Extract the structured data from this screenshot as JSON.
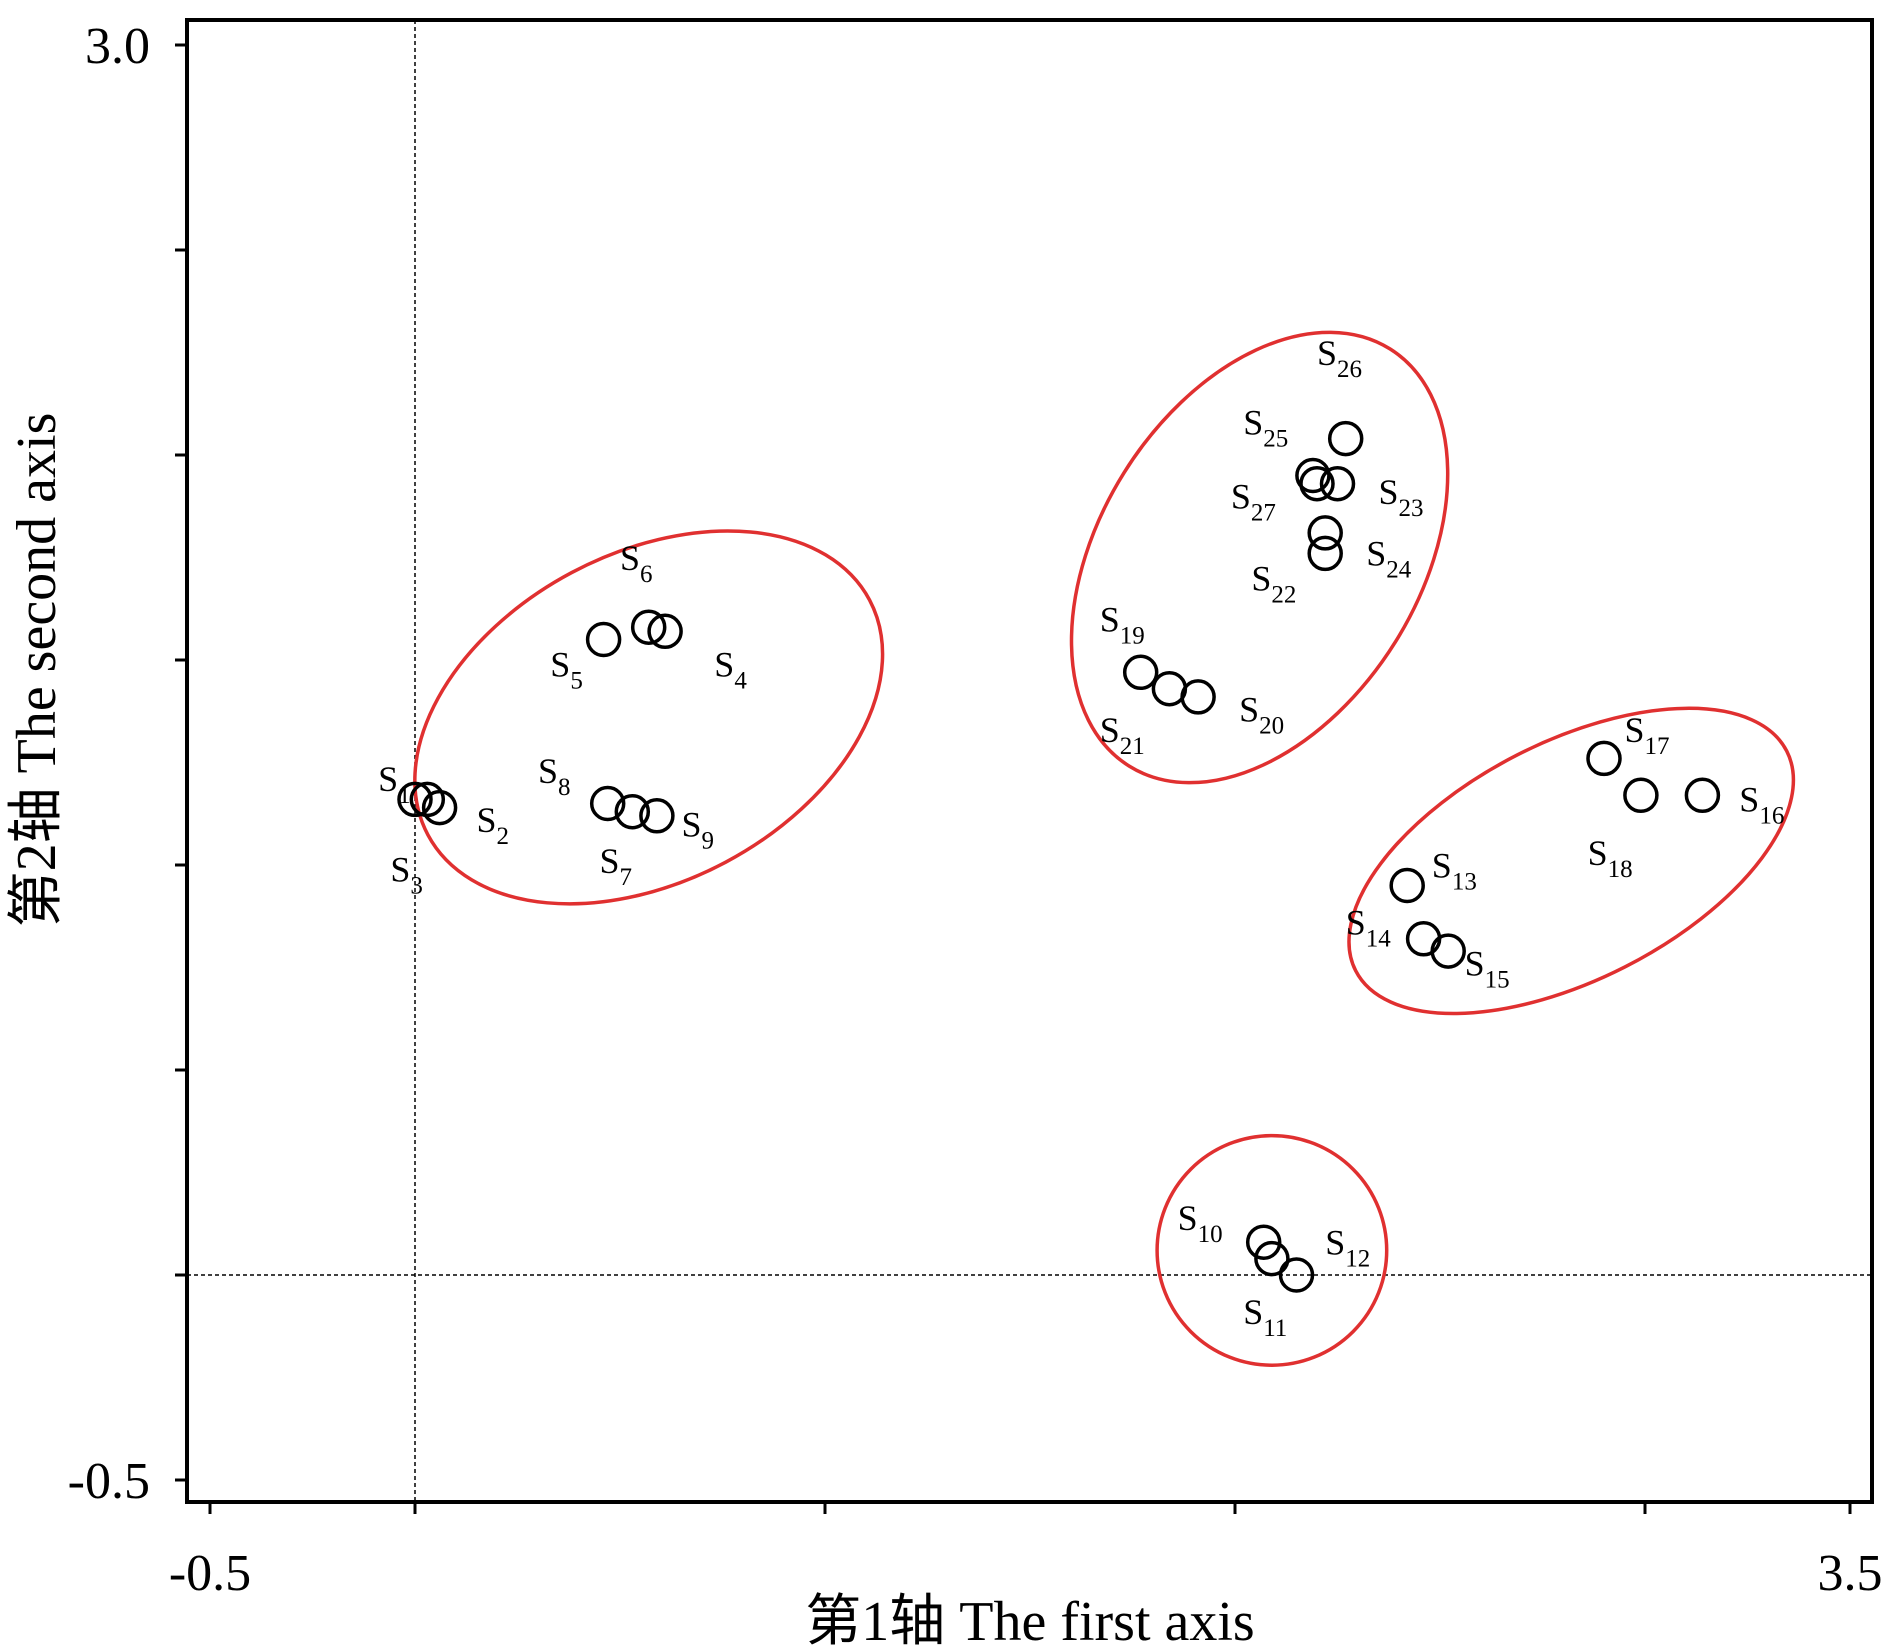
{
  "chart_data": {
    "type": "scatter",
    "xlabel": "第1轴 The first axis",
    "ylabel": "第2轴 The second axis",
    "xlim": [
      -0.5,
      3.5
    ],
    "ylim": [
      -0.5,
      3.0
    ],
    "x_tick_labels": [
      {
        "value": -0.5,
        "label": "-0.5"
      },
      {
        "value": 3.5,
        "label": "3.5"
      }
    ],
    "y_tick_labels": [
      {
        "value": 3.0,
        "label": "3.0"
      },
      {
        "value": -0.5,
        "label": "-0.5"
      }
    ],
    "x_ticks": [
      -0.5,
      0.0,
      1.0,
      2.0,
      3.0,
      3.5
    ],
    "y_ticks": [
      -0.5,
      0.0,
      0.5,
      1.0,
      1.5,
      2.0,
      2.5,
      3.0
    ],
    "reference_lines": {
      "x": 0.0,
      "y": 0.0
    },
    "points": [
      {
        "id": "S1",
        "x": 0.0,
        "y": 1.16,
        "label_x": -0.09,
        "label_y": 1.18
      },
      {
        "id": "S2",
        "x": 0.06,
        "y": 1.14,
        "label_x": 0.15,
        "label_y": 1.08
      },
      {
        "id": "S3",
        "x": 0.03,
        "y": 1.16,
        "label_x": -0.06,
        "label_y": 0.96
      },
      {
        "id": "S4",
        "x": 0.61,
        "y": 1.57,
        "label_x": 0.73,
        "label_y": 1.46
      },
      {
        "id": "S5",
        "x": 0.46,
        "y": 1.55,
        "label_x": 0.33,
        "label_y": 1.46
      },
      {
        "id": "S6",
        "x": 0.57,
        "y": 1.58,
        "label_x": 0.5,
        "label_y": 1.72
      },
      {
        "id": "S7",
        "x": 0.53,
        "y": 1.13,
        "label_x": 0.45,
        "label_y": 0.98
      },
      {
        "id": "S8",
        "x": 0.47,
        "y": 1.15,
        "label_x": 0.3,
        "label_y": 1.2
      },
      {
        "id": "S9",
        "x": 0.59,
        "y": 1.12,
        "label_x": 0.65,
        "label_y": 1.07
      },
      {
        "id": "S10",
        "x": 2.07,
        "y": 0.08,
        "label_x": 1.86,
        "label_y": 0.11
      },
      {
        "id": "S11",
        "x": 2.15,
        "y": 0.0,
        "label_x": 2.02,
        "label_y": -0.12
      },
      {
        "id": "S12",
        "x": 2.09,
        "y": 0.04,
        "label_x": 2.22,
        "label_y": 0.05
      },
      {
        "id": "S13",
        "x": 2.42,
        "y": 0.95,
        "label_x": 2.48,
        "label_y": 0.97
      },
      {
        "id": "S14",
        "x": 2.46,
        "y": 0.82,
        "label_x": 2.27,
        "label_y": 0.83
      },
      {
        "id": "S15",
        "x": 2.52,
        "y": 0.79,
        "label_x": 2.56,
        "label_y": 0.73
      },
      {
        "id": "S16",
        "x": 3.14,
        "y": 1.17,
        "label_x": 3.23,
        "label_y": 1.13
      },
      {
        "id": "S17",
        "x": 2.9,
        "y": 1.26,
        "label_x": 2.95,
        "label_y": 1.3
      },
      {
        "id": "S18",
        "x": 2.99,
        "y": 1.17,
        "label_x": 2.86,
        "label_y": 1.0
      },
      {
        "id": "S19",
        "x": 1.77,
        "y": 1.47,
        "label_x": 1.67,
        "label_y": 1.57
      },
      {
        "id": "S20",
        "x": 1.91,
        "y": 1.41,
        "label_x": 2.01,
        "label_y": 1.35
      },
      {
        "id": "S21",
        "x": 1.84,
        "y": 1.43,
        "label_x": 1.67,
        "label_y": 1.3
      },
      {
        "id": "S22",
        "x": 2.22,
        "y": 1.81,
        "label_x": 2.04,
        "label_y": 1.67
      },
      {
        "id": "S23",
        "x": 2.25,
        "y": 1.93,
        "label_x": 2.35,
        "label_y": 1.88
      },
      {
        "id": "S24",
        "x": 2.22,
        "y": 1.76,
        "label_x": 2.32,
        "label_y": 1.73
      },
      {
        "id": "S25",
        "x": 2.19,
        "y": 1.95,
        "label_x": 2.02,
        "label_y": 2.05
      },
      {
        "id": "S26",
        "x": 2.27,
        "y": 2.04,
        "label_x": 2.2,
        "label_y": 2.22
      },
      {
        "id": "S27",
        "x": 2.2,
        "y": 1.93,
        "label_x": 1.99,
        "label_y": 1.87
      }
    ],
    "groups": [
      {
        "members": [
          "S1",
          "S2",
          "S3",
          "S4",
          "S5",
          "S6",
          "S7",
          "S8",
          "S9"
        ],
        "cx": 0.57,
        "cy": 1.36,
        "rx": 0.61,
        "ry": 0.4,
        "rotation_deg": -28
      },
      {
        "members": [
          "S19",
          "S20",
          "S21",
          "S22",
          "S23",
          "S24",
          "S25",
          "S26",
          "S27"
        ],
        "cx": 2.06,
        "cy": 1.75,
        "rx": 0.6,
        "ry": 0.39,
        "rotation_deg": -58
      },
      {
        "members": [
          "S13",
          "S14",
          "S15",
          "S16",
          "S17",
          "S18"
        ],
        "cx": 2.82,
        "cy": 1.01,
        "rx": 0.59,
        "ry": 0.29,
        "rotation_deg": -27
      },
      {
        "members": [
          "S10",
          "S11",
          "S12"
        ],
        "cx": 2.09,
        "cy": 0.06,
        "rx": 0.28,
        "ry": 0.28,
        "rotation_deg": 0
      }
    ],
    "colors": {
      "marker_stroke": "#000000",
      "group_ellipse": "#e03030",
      "reference_line": "#000000"
    },
    "grid": false,
    "legend": "none"
  }
}
